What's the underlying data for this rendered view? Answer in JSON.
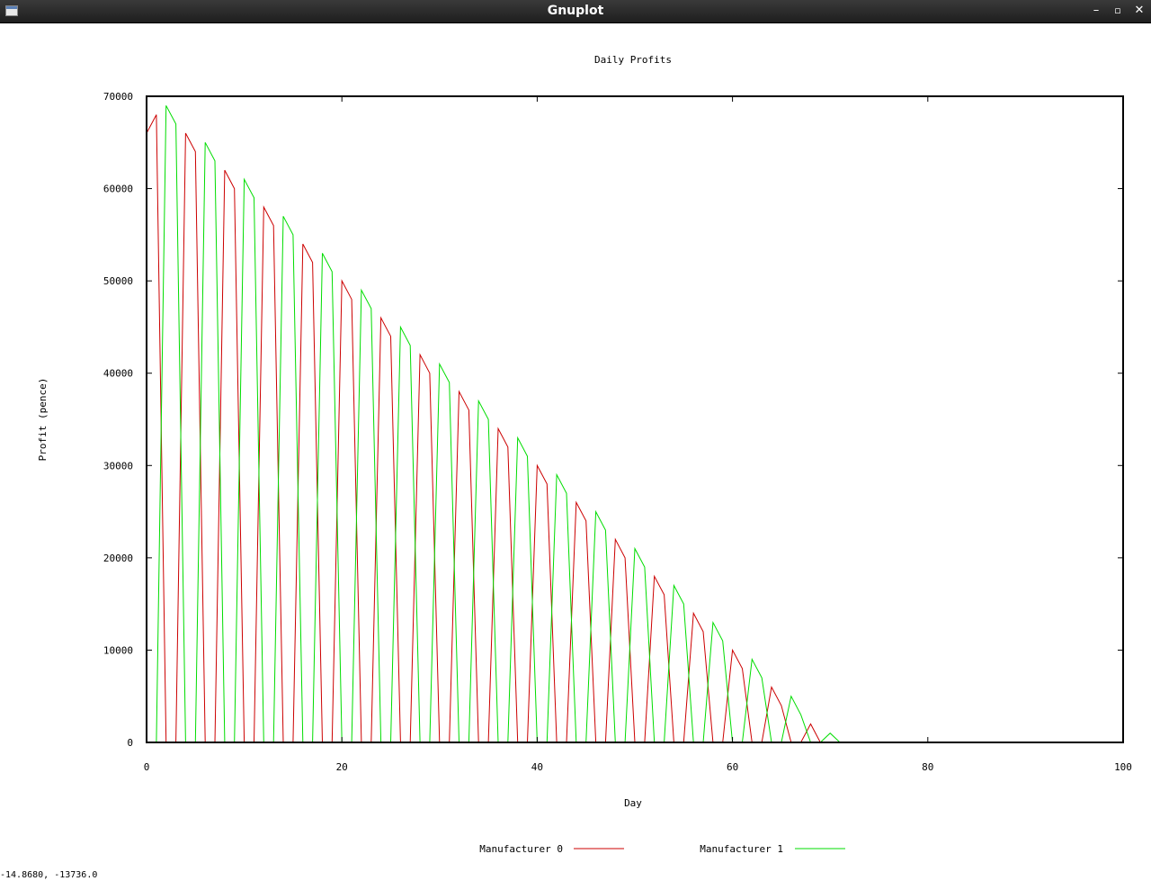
{
  "window": {
    "title": "Gnuplot",
    "icon": "window-icon",
    "buttons": {
      "minimize": "–",
      "maximize": "▫",
      "close": "✕"
    }
  },
  "status_bar": {
    "coordinates": "-14.8680, -13736.0"
  },
  "chart_data": {
    "type": "line",
    "title": "Daily Profits",
    "xlabel": "Day",
    "ylabel": "Profit (pence)",
    "xlim": [
      0,
      100
    ],
    "ylim": [
      0,
      70000
    ],
    "x_ticks": [
      0,
      20,
      40,
      60,
      80,
      100
    ],
    "x_tick_labels": [
      "0",
      "20",
      "40",
      "60",
      "80",
      "100"
    ],
    "y_ticks": [
      0,
      10000,
      20000,
      30000,
      40000,
      50000,
      60000,
      70000
    ],
    "y_tick_labels": [
      "0",
      "10000",
      "20000",
      "30000",
      "40000",
      "50000",
      "60000",
      "70000"
    ],
    "grid": false,
    "legend_position": "bottom",
    "series": [
      {
        "name": "Manufacturer 0",
        "color": "#cc0000",
        "x": [
          0,
          1,
          2,
          3,
          4,
          5,
          6,
          7,
          8,
          9,
          10,
          11,
          12,
          13,
          14,
          15,
          16,
          17,
          18,
          19,
          20,
          21,
          22,
          23,
          24,
          25,
          26,
          27,
          28,
          29,
          30,
          31,
          32,
          33,
          34,
          35,
          36,
          37,
          38,
          39,
          40,
          41,
          42,
          43,
          44,
          45,
          46,
          47,
          48,
          49,
          50,
          51,
          52,
          53,
          54,
          55,
          56,
          57,
          58,
          59,
          60,
          61,
          62,
          63,
          64,
          65,
          66,
          67,
          68,
          69,
          70,
          71,
          72,
          73,
          74,
          75,
          76,
          77,
          78,
          79,
          80,
          81,
          82,
          83,
          84,
          85,
          86,
          87,
          88,
          89,
          90,
          91,
          92,
          93,
          94,
          95,
          96,
          97,
          98,
          99,
          100
        ],
        "y": [
          66000,
          68000,
          0,
          0,
          66000,
          64000,
          0,
          0,
          62000,
          60000,
          0,
          0,
          58000,
          56000,
          0,
          0,
          54000,
          52000,
          0,
          0,
          50000,
          48000,
          0,
          0,
          46000,
          44000,
          0,
          0,
          42000,
          40000,
          0,
          0,
          38000,
          36000,
          0,
          0,
          34000,
          32000,
          0,
          0,
          30000,
          28000,
          0,
          0,
          26000,
          24000,
          0,
          0,
          22000,
          20000,
          0,
          0,
          18000,
          16000,
          0,
          0,
          14000,
          12000,
          0,
          0,
          10000,
          8000,
          0,
          0,
          6000,
          4000,
          0,
          0,
          2000,
          0,
          0,
          0,
          0,
          0,
          0,
          0,
          0,
          0,
          0,
          0,
          0,
          0,
          0,
          0,
          0,
          0,
          0,
          0,
          0,
          0,
          0,
          0,
          0,
          0,
          0,
          0,
          0,
          0,
          0,
          0,
          0
        ]
      },
      {
        "name": "Manufacturer 1",
        "color": "#00dd00",
        "x": [
          1,
          2,
          3,
          4,
          5,
          6,
          7,
          8,
          9,
          10,
          11,
          12,
          13,
          14,
          15,
          16,
          17,
          18,
          19,
          20,
          21,
          22,
          23,
          24,
          25,
          26,
          27,
          28,
          29,
          30,
          31,
          32,
          33,
          34,
          35,
          36,
          37,
          38,
          39,
          40,
          41,
          42,
          43,
          44,
          45,
          46,
          47,
          48,
          49,
          50,
          51,
          52,
          53,
          54,
          55,
          56,
          57,
          58,
          59,
          60,
          61,
          62,
          63,
          64,
          65,
          66,
          67,
          68,
          69,
          70,
          71,
          72,
          73,
          74,
          75,
          76,
          77,
          78,
          79,
          80,
          81,
          82,
          83,
          84,
          85,
          86,
          87,
          88,
          89,
          90,
          91,
          92,
          93,
          94,
          95,
          96,
          97,
          98,
          99,
          100
        ],
        "y": [
          0,
          69000,
          67000,
          0,
          0,
          65000,
          63000,
          0,
          0,
          61000,
          59000,
          0,
          0,
          57000,
          55000,
          0,
          0,
          53000,
          51000,
          0,
          0,
          49000,
          47000,
          0,
          0,
          45000,
          43000,
          0,
          0,
          41000,
          39000,
          0,
          0,
          37000,
          35000,
          0,
          0,
          33000,
          31000,
          0,
          0,
          29000,
          27000,
          0,
          0,
          25000,
          23000,
          0,
          0,
          21000,
          19000,
          0,
          0,
          17000,
          15000,
          0,
          0,
          13000,
          11000,
          0,
          0,
          9000,
          7000,
          0,
          0,
          5000,
          3000,
          0,
          0,
          1000,
          0,
          0,
          0,
          0,
          0,
          0,
          0,
          0,
          0,
          0,
          0,
          0,
          0,
          0,
          0,
          0,
          0,
          0,
          0,
          0,
          0,
          0,
          0,
          0,
          0,
          0,
          0,
          0,
          0,
          0
        ]
      }
    ]
  }
}
